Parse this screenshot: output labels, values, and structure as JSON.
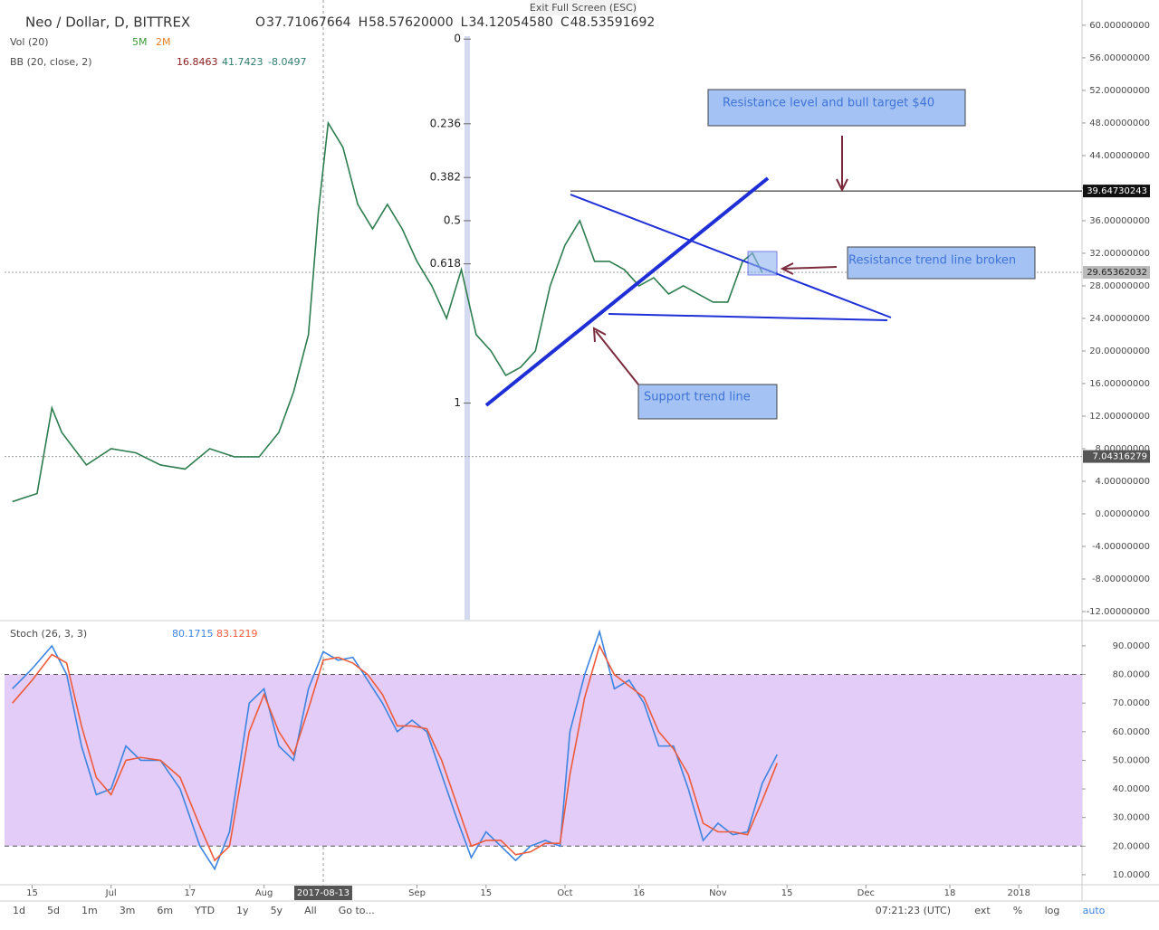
{
  "header": {
    "symbol": "Neo / Dollar, D, BITTREX",
    "ohlc": [
      {
        "label": "O",
        "value": "37.71067664"
      },
      {
        "label": "H",
        "value": "58.57620000"
      },
      {
        "label": "L",
        "value": "34.12054580"
      },
      {
        "label": "C",
        "value": "48.53591692"
      }
    ],
    "volume": {
      "label": "Vol (20)",
      "values": [
        "5M",
        "2M"
      ]
    },
    "bollinger": {
      "label": "BB (20, close, 2)",
      "values": [
        "16.8463",
        "41.7423",
        "-8.0497"
      ]
    },
    "stoch": {
      "label": "Stoch (26, 3, 3)",
      "values": [
        "80.1715",
        "83.1219"
      ]
    },
    "exit": "Exit Full Screen (ESC)"
  },
  "chart_data": [
    {
      "type": "line",
      "series": [
        {
          "name": "Close",
          "color": "#2e7d4f",
          "x": [
            10,
            15,
            18,
            20,
            25,
            30,
            35,
            40,
            45,
            50,
            55,
            60,
            64,
            67,
            70,
            72,
            74,
            77,
            80,
            83,
            86,
            89,
            92,
            95,
            98,
            101,
            104,
            107,
            110,
            113,
            116,
            119,
            122,
            125,
            128,
            131,
            134,
            137,
            140,
            143,
            146,
            149,
            152,
            155,
            158,
            160,
            162
          ],
          "values": [
            1.5,
            2.5,
            13,
            10,
            6,
            8,
            7.5,
            6,
            5.5,
            8,
            7,
            7,
            10,
            15,
            22,
            37,
            48,
            45,
            38,
            35,
            38,
            35,
            31,
            28,
            24,
            30,
            22,
            20,
            17,
            18,
            20,
            28,
            33,
            36,
            31,
            31,
            30,
            28,
            29,
            27,
            28,
            27,
            26,
            26,
            31,
            32,
            29.6
          ]
        }
      ],
      "xlim": [
        8.4,
        226.8
      ],
      "xticks": [
        {
          "value": 14,
          "label": "15"
        },
        {
          "value": 30,
          "label": "Jul"
        },
        {
          "value": 46,
          "label": "17"
        },
        {
          "value": 61,
          "label": "Aug"
        },
        {
          "value": 73,
          "label": "2017-08-13"
        },
        {
          "value": 92,
          "label": "Sep"
        },
        {
          "value": 106,
          "label": "15"
        },
        {
          "value": 122,
          "label": "Oct"
        },
        {
          "value": 137,
          "label": "16"
        },
        {
          "value": 153,
          "label": "Nov"
        },
        {
          "value": 167,
          "label": "15"
        },
        {
          "value": 183,
          "label": "Dec"
        },
        {
          "value": 200,
          "label": "18"
        },
        {
          "value": 214,
          "label": "2018"
        }
      ],
      "ylim": [
        -13,
        63.1
      ],
      "yticks": [
        {
          "value": 60,
          "label": "60.00000000"
        },
        {
          "value": 56,
          "label": "56.00000000"
        },
        {
          "value": 52,
          "label": "52.00000000"
        },
        {
          "value": 48,
          "label": "48.00000000"
        },
        {
          "value": 44,
          "label": "44.00000000"
        },
        {
          "value": 40,
          "label": "40.00000000"
        },
        {
          "value": 36,
          "label": "36.00000000"
        },
        {
          "value": 32,
          "label": "32.00000000"
        },
        {
          "value": 28,
          "label": "28.00000000"
        },
        {
          "value": 24,
          "label": "24.00000000"
        },
        {
          "value": 20,
          "label": "20.00000000"
        },
        {
          "value": 16,
          "label": "16.00000000"
        },
        {
          "value": 12,
          "label": "12.00000000"
        },
        {
          "value": 8,
          "label": "8.00000000"
        },
        {
          "value": 4,
          "label": "4.00000000"
        },
        {
          "value": 0,
          "label": "0.00000000"
        },
        {
          "value": -4,
          "label": "-4.00000000"
        },
        {
          "value": -8,
          "label": "-8.00000000"
        },
        {
          "value": -12,
          "label": "-12.00000000"
        }
      ],
      "price_labels": [
        {
          "value": 39.6473,
          "label": "39.64730243"
        },
        {
          "value": 29.6536,
          "label": "29.65362032"
        },
        {
          "value": 7.0432,
          "label": "7.04316279"
        }
      ],
      "fib_levels": [
        {
          "level": 0,
          "price": 58.3
        },
        {
          "level": 0.236,
          "price": 47.9
        },
        {
          "level": 0.382,
          "price": 41.3
        },
        {
          "level": 0.5,
          "price": 36
        },
        {
          "level": 0.618,
          "price": 30.7
        },
        {
          "level": 1,
          "price": 13.6
        }
      ],
      "annotations": [
        "Resistance level and bull target $40",
        "Resistance trend line broken",
        "Support trend line"
      ]
    },
    {
      "type": "line",
      "series": [
        {
          "name": "%K",
          "color": "#3d85e0",
          "x": [
            10,
            14,
            18,
            21,
            24,
            27,
            30,
            33,
            36,
            40,
            44,
            48,
            51,
            54,
            58,
            61,
            64,
            67,
            70,
            73,
            76,
            79,
            82,
            85,
            88,
            91,
            94,
            97,
            100,
            103,
            106,
            109,
            112,
            115,
            118,
            121,
            123,
            126,
            129,
            132,
            135,
            138,
            141,
            144,
            147,
            150,
            153,
            156,
            159,
            162,
            165
          ],
          "values": [
            75,
            82,
            90,
            80,
            55,
            38,
            40,
            55,
            50,
            50,
            40,
            20,
            12,
            25,
            70,
            75,
            55,
            50,
            75,
            88,
            85,
            86,
            78,
            70,
            60,
            64,
            60,
            45,
            30,
            16,
            25,
            20,
            15,
            20,
            22,
            20,
            60,
            80,
            95,
            75,
            78,
            70,
            55,
            55,
            40,
            22,
            28,
            24,
            25,
            42,
            52
          ]
        },
        {
          "name": "%D",
          "color": "#ef5b3a",
          "x": [
            10,
            14,
            18,
            21,
            24,
            27,
            30,
            33,
            36,
            40,
            44,
            48,
            51,
            54,
            58,
            61,
            64,
            67,
            70,
            73,
            76,
            79,
            82,
            85,
            88,
            91,
            94,
            97,
            100,
            103,
            106,
            109,
            112,
            115,
            118,
            121,
            123,
            126,
            129,
            132,
            135,
            138,
            141,
            144,
            147,
            150,
            153,
            156,
            159,
            162,
            165
          ],
          "values": [
            70,
            78,
            87,
            84,
            62,
            44,
            38,
            50,
            51,
            50,
            44,
            27,
            15,
            20,
            60,
            73,
            60,
            52,
            68,
            85,
            86,
            84,
            80,
            73,
            62,
            62,
            61,
            50,
            35,
            20,
            22,
            22,
            17,
            18,
            21,
            21,
            45,
            72,
            90,
            80,
            76,
            72,
            60,
            54,
            45,
            28,
            25,
            25,
            24,
            36,
            49
          ]
        }
      ],
      "xlim": [
        8.4,
        226.8
      ],
      "ylim": [
        6.5,
        98.2
      ],
      "yticks": [
        {
          "value": 90,
          "label": "90.0000"
        },
        {
          "value": 80,
          "label": "80.0000"
        },
        {
          "value": 70,
          "label": "70.0000"
        },
        {
          "value": 60,
          "label": "60.0000"
        },
        {
          "value": 50,
          "label": "50.0000"
        },
        {
          "value": 40,
          "label": "40.0000"
        },
        {
          "value": 30,
          "label": "30.0000"
        },
        {
          "value": 20,
          "label": "20.0000"
        },
        {
          "value": 10,
          "label": "10.0000"
        }
      ],
      "band": [
        20,
        80
      ]
    }
  ],
  "toolbar": {
    "ranges": [
      "1d",
      "5d",
      "1m",
      "3m",
      "6m",
      "YTD",
      "1y",
      "5y",
      "All"
    ],
    "goto": "Go to...",
    "time": "07:21:23 (UTC)",
    "options": [
      "ext",
      "%",
      "log",
      "auto"
    ]
  }
}
